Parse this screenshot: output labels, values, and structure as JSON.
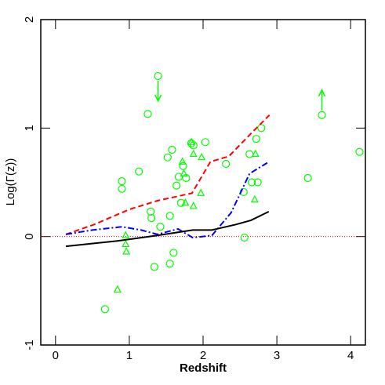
{
  "chart_data": {
    "type": "scatter",
    "x_label": "Redshift",
    "y_label": "Log(Γ(z))",
    "xlim": [
      -0.2,
      4.2
    ],
    "ylim": [
      -1,
      2
    ],
    "xticks": [
      0,
      1,
      2,
      3,
      4
    ],
    "yticks": [
      -1,
      0,
      1,
      2
    ],
    "reference_line": {
      "value": 0,
      "color": "#ff0000",
      "style": "dotted"
    },
    "series": [
      {
        "marker": "circle",
        "color": "#00ff00",
        "x": [
          1.39,
          1.25,
          3.61,
          1.13,
          0.9,
          0.9,
          1.29,
          1.3,
          1.55,
          1.42,
          1.34,
          1.55,
          1.6,
          0.67,
          1.52,
          1.58,
          1.73,
          1.67,
          1.64,
          1.77,
          1.87,
          2.03,
          1.7,
          2.31,
          2.79,
          2.72,
          2.63,
          2.66,
          2.74,
          2.55,
          2.56,
          3.42,
          4.12,
          1.84
        ],
        "values": [
          1.48,
          1.13,
          1.12,
          0.6,
          0.51,
          0.44,
          0.23,
          0.17,
          0.19,
          0.09,
          -0.28,
          -0.25,
          -0.15,
          -0.67,
          0.73,
          0.8,
          0.65,
          0.55,
          0.47,
          0.54,
          0.84,
          0.87,
          0.31,
          0.67,
          1.0,
          0.9,
          0.76,
          0.5,
          0.5,
          0.41,
          -0.01,
          0.54,
          0.78,
          0.86
        ],
        "limits": [
          "down",
          null,
          "up",
          null,
          null,
          null,
          null,
          null,
          null,
          null,
          null,
          null,
          null,
          null,
          null,
          null,
          null,
          null,
          null,
          null,
          null,
          null,
          null,
          null,
          null,
          null,
          null,
          null,
          null,
          null,
          null,
          null,
          null,
          null
        ]
      },
      {
        "marker": "triangle",
        "color": "#00ff00",
        "x": [
          0.95,
          0.95,
          0.96,
          0.84,
          1.72,
          1.74,
          1.87,
          1.84,
          1.97,
          1.98,
          1.87,
          1.76,
          2.71,
          2.7
        ],
        "values": [
          0.01,
          -0.07,
          -0.14,
          -0.49,
          0.69,
          0.58,
          0.76,
          0.87,
          0.4,
          0.73,
          0.28,
          0.31,
          0.76,
          0.34
        ]
      },
      {
        "line": "dashed",
        "color": "#ff0000",
        "x": [
          0.14,
          0.52,
          1.0,
          1.38,
          1.85,
          2.1,
          2.35,
          2.65,
          2.9
        ],
        "values": [
          0.02,
          0.11,
          0.25,
          0.33,
          0.4,
          0.69,
          0.74,
          0.95,
          1.12
        ]
      },
      {
        "line": "dashdot",
        "color": "#0000ff",
        "x": [
          0.14,
          0.5,
          0.9,
          1.16,
          1.38,
          1.66,
          1.86,
          2.12,
          2.38,
          2.63,
          2.87
        ],
        "values": [
          0.02,
          0.06,
          0.09,
          0.06,
          0.02,
          0.07,
          -0.01,
          0.01,
          0.22,
          0.58,
          0.68
        ]
      },
      {
        "line": "solid",
        "color": "#000000",
        "x": [
          0.14,
          0.42,
          0.84,
          1.38,
          1.86,
          2.12,
          2.44,
          2.65,
          2.89
        ],
        "values": [
          -0.09,
          -0.07,
          -0.04,
          0.01,
          0.06,
          0.06,
          0.11,
          0.15,
          0.23
        ]
      }
    ]
  }
}
